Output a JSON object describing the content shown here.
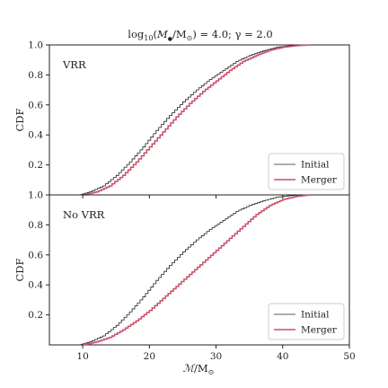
{
  "chart_data": {
    "type": "line",
    "title_parts": {
      "log_prefix": "log",
      "log_sub": "10",
      "open": "(",
      "mass_symbol": "M",
      "bullet_sub": "●",
      "slash": "/M",
      "sun_sub": "⊙",
      "close": ") = 4.0; ",
      "gamma": "γ = 2.0"
    },
    "xlabel_parts": {
      "symbol": "ℳ",
      "slash": "/M",
      "sun_sub": "⊙"
    },
    "xlim": [
      5,
      50
    ],
    "x_ticks": [
      "10",
      "20",
      "30",
      "40",
      "50"
    ],
    "x_tick_values": [
      10,
      20,
      30,
      40,
      50
    ],
    "shared_x": true,
    "panels": [
      {
        "label": "VRR",
        "ylabel": "CDF",
        "ylim": [
          0,
          1
        ],
        "y_ticks": [
          "0.2",
          "0.4",
          "0.6",
          "0.8",
          "1.0"
        ],
        "y_tick_values": [
          0.2,
          0.4,
          0.6,
          0.8,
          1.0
        ],
        "legend": {
          "placement": "lower-right",
          "entries": [
            "Initial",
            "Merger"
          ]
        },
        "series": [
          {
            "name": "Initial",
            "color": "#222222",
            "x": [
              9.5,
              11,
              13,
              15,
              17,
              19,
              21,
              23,
              25,
              27,
              29,
              31,
              33,
              35,
              37,
              39,
              41,
              43
            ],
            "values": [
              0.0,
              0.02,
              0.06,
              0.13,
              0.22,
              0.32,
              0.43,
              0.53,
              0.62,
              0.7,
              0.77,
              0.83,
              0.89,
              0.93,
              0.96,
              0.985,
              0.995,
              1.0
            ]
          },
          {
            "name": "Merger",
            "color": "#c8506a",
            "x": [
              10,
              12,
              14,
              16,
              18,
              20,
              22,
              24,
              26,
              28,
              30,
              32,
              34,
              36,
              38,
              40,
              42,
              44
            ],
            "values": [
              0.0,
              0.02,
              0.06,
              0.13,
              0.22,
              0.32,
              0.42,
              0.52,
              0.61,
              0.69,
              0.76,
              0.83,
              0.89,
              0.93,
              0.965,
              0.985,
              0.995,
              1.0
            ]
          }
        ]
      },
      {
        "label": "No VRR",
        "ylabel": "CDF",
        "ylim": [
          0,
          1
        ],
        "y_ticks": [
          "0.2",
          "0.4",
          "0.6",
          "0.8",
          "1.0"
        ],
        "y_tick_values": [
          0.2,
          0.4,
          0.6,
          0.8,
          1.0
        ],
        "legend": {
          "placement": "lower-right",
          "entries": [
            "Initial",
            "Merger"
          ]
        },
        "series": [
          {
            "name": "Initial",
            "color": "#222222",
            "x": [
              9.5,
              11,
              13,
              15,
              17,
              19,
              21,
              23,
              25,
              27,
              29,
              31,
              33,
              35,
              37,
              39,
              41,
              43
            ],
            "values": [
              0.0,
              0.02,
              0.06,
              0.13,
              0.22,
              0.32,
              0.43,
              0.53,
              0.62,
              0.7,
              0.77,
              0.83,
              0.89,
              0.93,
              0.96,
              0.985,
              0.995,
              1.0
            ]
          },
          {
            "name": "Merger",
            "color": "#c8506a",
            "x": [
              10,
              12,
              14,
              16,
              18,
              20,
              22,
              24,
              26,
              28,
              30,
              32,
              34,
              36,
              38,
              40,
              42,
              44
            ],
            "values": [
              0.0,
              0.02,
              0.05,
              0.1,
              0.16,
              0.23,
              0.31,
              0.39,
              0.47,
              0.55,
              0.63,
              0.71,
              0.79,
              0.87,
              0.93,
              0.97,
              0.99,
              1.0
            ]
          }
        ]
      }
    ]
  }
}
